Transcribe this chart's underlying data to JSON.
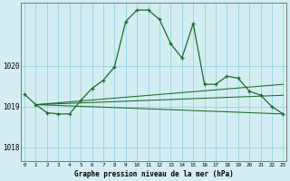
{
  "title": "Graphe pression niveau de la mer (hPa)",
  "background_color": "#d4edf2",
  "grid_color": "#88ccdd",
  "line_color": "#1a6b2a",
  "x_ticks": [
    0,
    1,
    2,
    3,
    4,
    5,
    6,
    7,
    8,
    9,
    10,
    11,
    12,
    13,
    14,
    15,
    16,
    17,
    18,
    19,
    20,
    21,
    22,
    23
  ],
  "y_ticks": [
    1018,
    1019,
    1020
  ],
  "ylim": [
    1017.65,
    1021.55
  ],
  "xlim": [
    -0.3,
    23.3
  ],
  "series": {
    "main": {
      "x": [
        0,
        1,
        2,
        3,
        4,
        5,
        6,
        7,
        8,
        9,
        10,
        11,
        12,
        13,
        14,
        15,
        16,
        17,
        18,
        19,
        20,
        21,
        22,
        23
      ],
      "y": [
        1019.3,
        1019.05,
        1018.85,
        1018.82,
        1018.82,
        1019.15,
        1019.45,
        1019.65,
        1019.98,
        1021.1,
        1021.38,
        1021.38,
        1021.15,
        1020.55,
        1020.2,
        1021.05,
        1019.55,
        1019.55,
        1019.75,
        1019.7,
        1019.38,
        1019.28,
        1019.0,
        1018.82
      ]
    },
    "line1": {
      "x": [
        1,
        23
      ],
      "y": [
        1019.05,
        1018.82
      ]
    },
    "line2": {
      "x": [
        1,
        23
      ],
      "y": [
        1019.05,
        1019.28
      ]
    },
    "line3": {
      "x": [
        1,
        23
      ],
      "y": [
        1019.05,
        1019.55
      ]
    }
  }
}
